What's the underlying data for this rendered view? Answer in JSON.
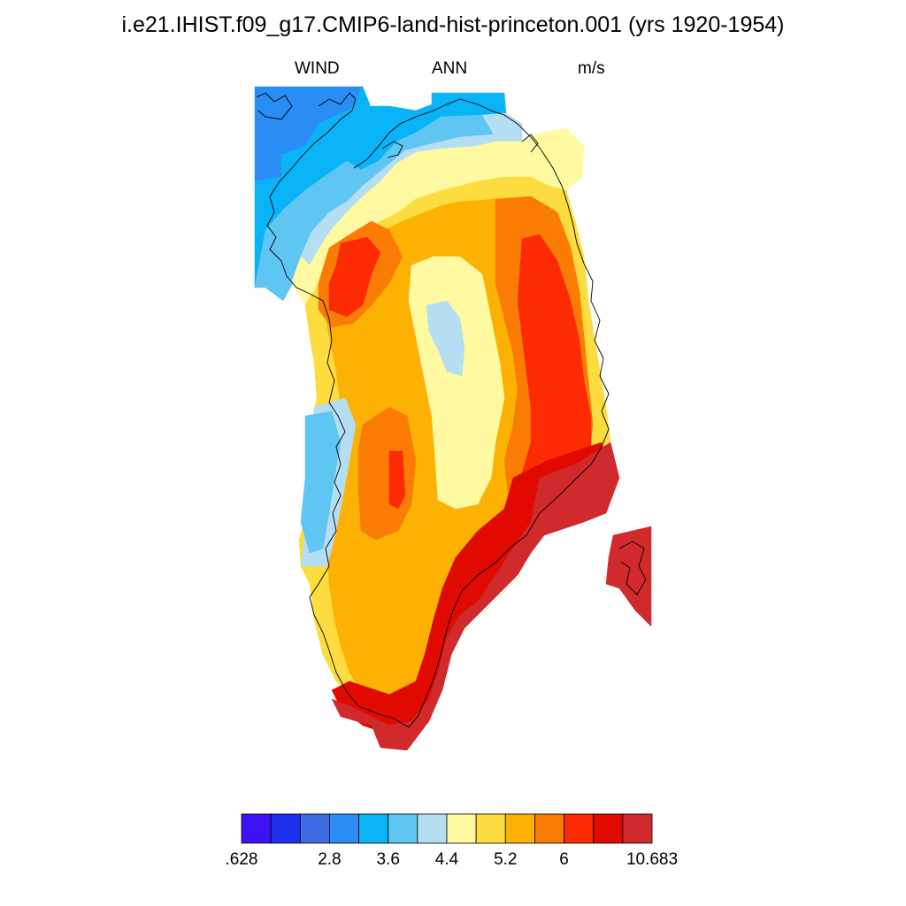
{
  "title": "i.e21.IHIST.f09_g17.CMIP6-land-hist-princeton.001 (yrs 1920-1954)",
  "subtitle": {
    "left": "WIND",
    "center": "ANN",
    "right": "m/s"
  },
  "colorbar": {
    "colors": [
      "#3f12f5",
      "#1e30ee",
      "#3d6be3",
      "#2a8cf5",
      "#09b4f6",
      "#5fc5f3",
      "#b5def2",
      "#fffaa2",
      "#fddc3f",
      "#fcb103",
      "#fb7c05",
      "#fc2b03",
      "#e10a01",
      "#d12a2c"
    ],
    "labels": [
      ".628",
      "2.8",
      "3.6",
      "4.4",
      "5.2",
      "6",
      "10.683"
    ]
  },
  "map": {
    "variable": "WIND",
    "units": "m/s",
    "region": "Greenland",
    "period": "ANN"
  }
}
